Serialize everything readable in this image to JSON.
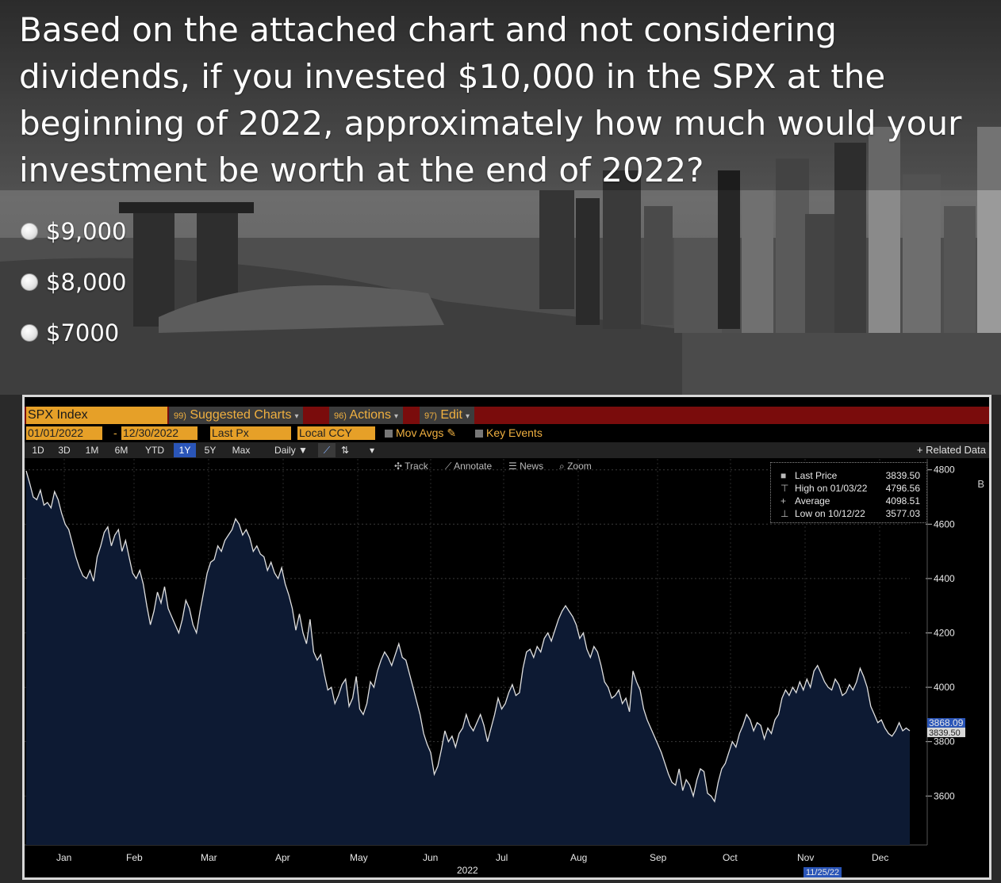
{
  "question": {
    "text": "Based on the attached chart and not considering dividends, if you invested $10,000 in the SPX at the beginning of 2022, approximately how much would your investment be worth at the end of 2022?",
    "options": [
      "$9,000",
      "$8,000",
      "$7000"
    ]
  },
  "terminal": {
    "security": "SPX Index",
    "toolbar": {
      "suggested_num": "99)",
      "suggested": "Suggested Charts",
      "actions_num": "96)",
      "actions": "Actions",
      "edit_num": "97)",
      "edit": "Edit"
    },
    "settings": {
      "start_date": "01/01/2022",
      "end_date": "12/30/2022",
      "field": "Last Px",
      "currency": "Local CCY",
      "mov_avgs": "Mov Avgs",
      "key_events": "Key Events"
    },
    "ranges": [
      "1D",
      "3D",
      "1M",
      "6M",
      "YTD",
      "1Y",
      "5Y",
      "Max"
    ],
    "active_range": "1Y",
    "frequency": "Daily",
    "related": "+ Related Data",
    "tools": [
      "Track",
      "Annotate",
      "News",
      "Zoom"
    ],
    "legend": [
      {
        "label": "Last Price",
        "value": "3839.50"
      },
      {
        "label": "High on 01/03/22",
        "value": "4796.56"
      },
      {
        "label": "Average",
        "value": "4098.51"
      },
      {
        "label": "Low on 10/12/22",
        "value": "3577.03"
      }
    ],
    "last_badge_1": "3868.09",
    "last_badge_2": "3839.50",
    "date_badge": "11/25/22",
    "side_b": "B"
  },
  "chart_data": {
    "type": "area",
    "title": "SPX Index",
    "xlabel": "2022",
    "ylabel": "",
    "x_ticks": [
      "Jan",
      "Feb",
      "Mar",
      "Apr",
      "May",
      "Jun",
      "Jul",
      "Aug",
      "Sep",
      "Oct",
      "Nov",
      "Dec"
    ],
    "y_ticks": [
      3600,
      3800,
      4000,
      4200,
      4400,
      4600,
      4800
    ],
    "ylim": [
      3420,
      4840
    ],
    "series": [
      {
        "name": "Last Price",
        "color": "#e0e0e0",
        "fill": "#0d1a33",
        "values": [
          4796,
          4750,
          4700,
          4690,
          4725,
          4670,
          4680,
          4660,
          4720,
          4690,
          4640,
          4600,
          4580,
          4530,
          4480,
          4440,
          4410,
          4400,
          4430,
          4390,
          4480,
          4520,
          4570,
          4590,
          4520,
          4560,
          4580,
          4500,
          4540,
          4480,
          4420,
          4400,
          4430,
          4380,
          4300,
          4230,
          4280,
          4350,
          4310,
          4370,
          4290,
          4260,
          4230,
          4200,
          4250,
          4320,
          4290,
          4230,
          4200,
          4280,
          4350,
          4420,
          4460,
          4470,
          4520,
          4500,
          4540,
          4560,
          4580,
          4620,
          4600,
          4560,
          4580,
          4550,
          4500,
          4520,
          4490,
          4480,
          4430,
          4460,
          4420,
          4400,
          4440,
          4380,
          4340,
          4290,
          4210,
          4270,
          4200,
          4160,
          4250,
          4130,
          4100,
          4120,
          4050,
          3990,
          4000,
          3940,
          3970,
          4010,
          4030,
          3930,
          3960,
          4040,
          3920,
          3900,
          3940,
          4020,
          4000,
          4060,
          4100,
          4130,
          4110,
          4080,
          4120,
          4160,
          4110,
          4100,
          4050,
          4000,
          3950,
          3900,
          3830,
          3790,
          3760,
          3680,
          3710,
          3770,
          3840,
          3800,
          3820,
          3780,
          3830,
          3850,
          3900,
          3860,
          3840,
          3870,
          3900,
          3860,
          3800,
          3850,
          3900,
          3960,
          3920,
          3940,
          3980,
          4010,
          3970,
          3980,
          4070,
          4130,
          4140,
          4110,
          4150,
          4130,
          4180,
          4200,
          4170,
          4210,
          4250,
          4280,
          4300,
          4280,
          4260,
          4230,
          4180,
          4200,
          4140,
          4110,
          4150,
          4130,
          4080,
          4020,
          4000,
          3960,
          3970,
          3990,
          3940,
          3960,
          3910,
          4060,
          4020,
          3990,
          3920,
          3880,
          3850,
          3820,
          3790,
          3760,
          3720,
          3680,
          3650,
          3640,
          3700,
          3620,
          3660,
          3640,
          3600,
          3660,
          3700,
          3690,
          3610,
          3600,
          3580,
          3650,
          3700,
          3720,
          3760,
          3800,
          3780,
          3830,
          3860,
          3900,
          3880,
          3840,
          3870,
          3860,
          3810,
          3850,
          3830,
          3880,
          3900,
          3960,
          3990,
          3970,
          4000,
          3980,
          4020,
          3990,
          4030,
          4000,
          4060,
          4080,
          4050,
          4020,
          4000,
          3990,
          4030,
          4010,
          3970,
          3980,
          4010,
          3990,
          4020,
          4070,
          4040,
          4000,
          3930,
          3900,
          3870,
          3880,
          3850,
          3830,
          3820,
          3840,
          3870,
          3840,
          3850,
          3840
        ]
      }
    ],
    "grid": true
  }
}
